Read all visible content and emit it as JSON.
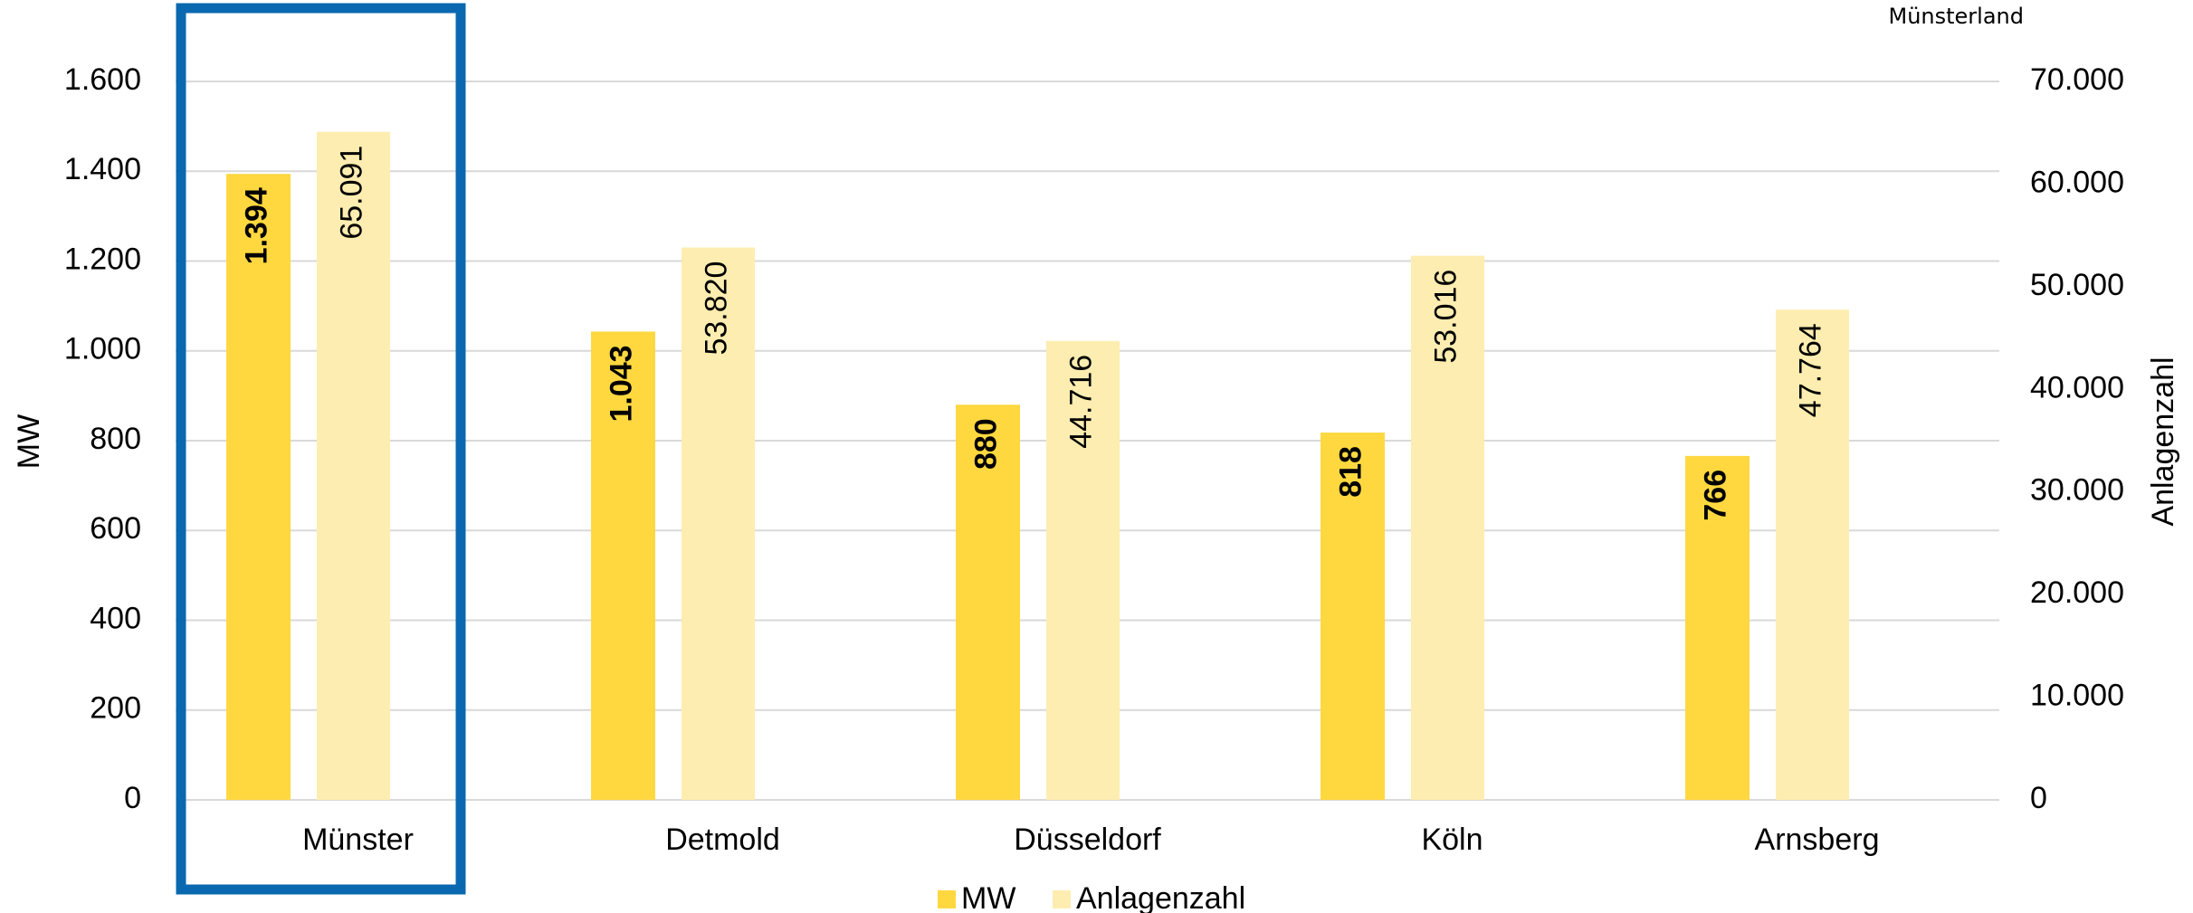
{
  "chart_data": {
    "type": "bar",
    "annotation": "Münsterland",
    "ylabel": "MW",
    "y2label": "Anlagenzahl",
    "categories": [
      "Münster",
      "Detmold",
      "Düsseldorf",
      "Köln",
      "Arnsberg"
    ],
    "series": [
      {
        "name": "MW",
        "color": "#FFD840",
        "values": [
          1394,
          1043,
          880,
          818,
          766
        ],
        "value_labels": [
          "1.394",
          "1.043",
          "880",
          "818",
          "766"
        ]
      },
      {
        "name": "Anlagenzahl",
        "color": "#FDEDB0",
        "axis": "y2",
        "values": [
          65091,
          53820,
          44716,
          53016,
          47764
        ],
        "value_labels": [
          "65.091",
          "53.820",
          "44.716",
          "53.016",
          "47.764"
        ]
      }
    ],
    "ylim": [
      0,
      1600
    ],
    "yticks": [
      0,
      200,
      400,
      600,
      800,
      {
        "value": 1000,
        "label": "1.000"
      },
      {
        "value": 1200,
        "label": "1.200"
      },
      {
        "value": 1400,
        "label": "1.400"
      },
      {
        "value": 1600,
        "label": "1.600"
      }
    ],
    "y2lim": [
      0,
      70000
    ],
    "y2ticks": [
      0,
      {
        "value": 10000,
        "label": "10.000"
      },
      {
        "value": 20000,
        "label": "20.000"
      },
      {
        "value": 30000,
        "label": "30.000"
      },
      {
        "value": 40000,
        "label": "40.000"
      },
      {
        "value": 50000,
        "label": "50.000"
      },
      {
        "value": 60000,
        "label": "60.000"
      },
      {
        "value": 70000,
        "label": "70.000"
      }
    ],
    "grid": true
  }
}
